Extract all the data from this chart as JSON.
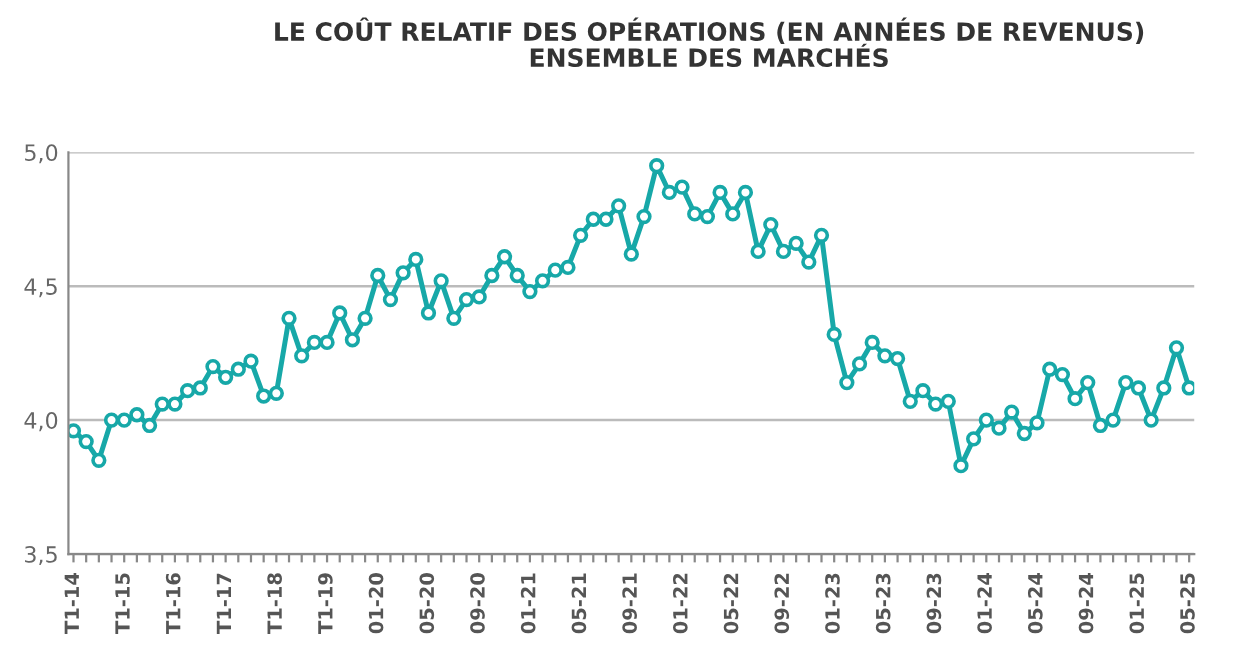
{
  "chart_data": {
    "type": "line",
    "title": "LE COÛT RELATIF DES OPÉRATIONS (EN ANNÉES DE REVENUS)\nENSEMBLE DES MARCHÉS",
    "categories": [
      "T1-14",
      null,
      null,
      null,
      "T1-15",
      null,
      null,
      null,
      "T1-16",
      null,
      null,
      null,
      "T1-17",
      null,
      null,
      null,
      "T1-18",
      null,
      null,
      null,
      "T1-19",
      null,
      null,
      null,
      "01-20",
      null,
      null,
      null,
      "05-20",
      null,
      null,
      null,
      "09-20",
      null,
      null,
      null,
      "01-21",
      null,
      null,
      null,
      "05-21",
      null,
      null,
      null,
      "09-21",
      null,
      null,
      null,
      "01-22",
      null,
      null,
      null,
      "05-22",
      null,
      null,
      null,
      "09-22",
      null,
      null,
      null,
      "01-23",
      null,
      null,
      null,
      "05-23",
      null,
      null,
      null,
      "09-23",
      null,
      null,
      null,
      "01-24",
      null,
      null,
      null,
      "05-24",
      null,
      null,
      null,
      "09-24",
      null,
      null,
      null,
      "01-25",
      null,
      null,
      null,
      "05-25"
    ],
    "series": [
      {
        "color": "#17a8a8",
        "values": [
          3.96,
          3.92,
          3.85,
          4.0,
          4.0,
          4.02,
          3.98,
          4.06,
          4.06,
          4.11,
          4.12,
          4.2,
          4.16,
          4.19,
          4.22,
          4.09,
          4.1,
          4.38,
          4.24,
          4.29,
          4.29,
          4.4,
          4.3,
          4.38,
          4.54,
          4.45,
          4.55,
          4.6,
          4.4,
          4.52,
          4.38,
          4.45,
          4.46,
          4.54,
          4.61,
          4.54,
          4.48,
          4.52,
          4.56,
          4.57,
          4.69,
          4.75,
          4.75,
          4.8,
          4.62,
          4.76,
          4.95,
          4.85,
          4.87,
          4.77,
          4.76,
          4.85,
          4.77,
          4.85,
          4.63,
          4.73,
          4.63,
          4.66,
          4.59,
          4.69,
          4.32,
          4.14,
          4.21,
          4.29,
          4.24,
          4.23,
          4.07,
          4.11,
          4.06,
          4.07,
          3.83,
          3.93,
          4.0,
          3.97,
          4.03,
          3.95,
          3.99,
          4.19,
          4.17,
          4.08,
          4.14,
          3.98,
          4.0,
          4.14,
          4.12,
          4.0,
          4.12,
          4.27,
          4.12
        ]
      }
    ],
    "ylim": [
      3.5,
      5.0
    ],
    "yticks": [
      {
        "value": 3.5,
        "label": "3,5"
      },
      {
        "value": 4.0,
        "label": "4,0"
      },
      {
        "value": 4.5,
        "label": "4,5"
      },
      {
        "value": 5.0,
        "label": "5,0"
      }
    ],
    "grid": "y",
    "marker": "circle",
    "line_style": "solid"
  }
}
